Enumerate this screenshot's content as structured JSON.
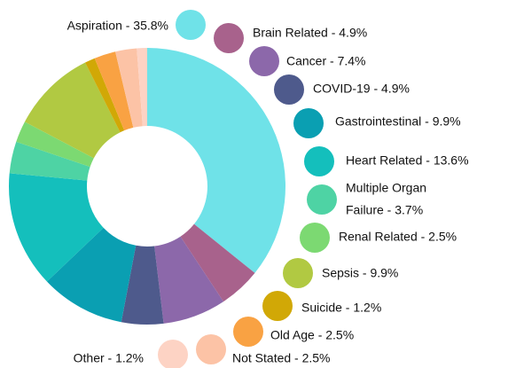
{
  "chart_data": {
    "type": "donut",
    "labels": [
      [
        "Aspiration - 35.8%"
      ],
      [
        "Brain Related - 4.9%"
      ],
      [
        "Cancer - 7.4%"
      ],
      [
        "COVID-19 - 4.9%"
      ],
      [
        "Gastrointestinal - 9.9%"
      ],
      [
        "Heart Related - 13.6%"
      ],
      [
        "Multiple Organ",
        "Failure - 3.7%"
      ],
      [
        "Renal Related - 2.5%"
      ],
      [
        "Sepsis - 9.9%"
      ],
      [
        "Suicide - 1.2%"
      ],
      [
        "Old Age - 2.5%"
      ],
      [
        "Not Stated - 2.5%"
      ],
      [
        "Other - 1.2%"
      ]
    ],
    "values": [
      35.8,
      4.9,
      7.4,
      4.9,
      9.9,
      13.6,
      3.7,
      2.5,
      9.9,
      1.2,
      2.5,
      2.5,
      1.2
    ],
    "colors": [
      "#6fe2e8",
      "#a8628c",
      "#8c68aa",
      "#4e5a8c",
      "#0a9fb2",
      "#14bfbc",
      "#4ed3a4",
      "#7cd972",
      "#b1c942",
      "#d1a806",
      "#f9a243",
      "#fcc3a6",
      "#fdd3c4"
    ]
  }
}
